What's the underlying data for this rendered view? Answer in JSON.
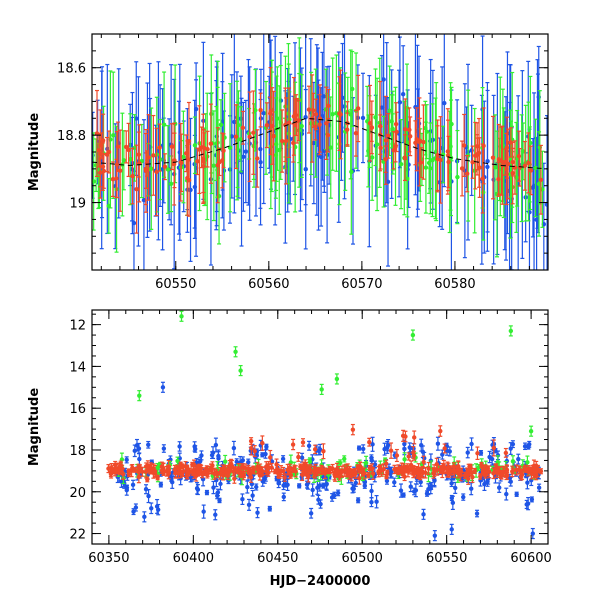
{
  "chart_data": [
    {
      "type": "scatter",
      "panel": "top",
      "xlabel": "",
      "ylabel": "Magnitude",
      "xlim": [
        60541,
        60590
      ],
      "ylim": [
        19.2,
        18.5
      ],
      "y_inverted": true,
      "xticks": [
        60550,
        60560,
        60570,
        60580
      ],
      "yticks": [
        18.6,
        18.8,
        19
      ],
      "ytick_labels": [
        "18.6",
        "18.8",
        "19"
      ],
      "error_bars": true,
      "series_colors": {
        "blue": "#1f55e6",
        "green": "#33ee33",
        "red": "#f04a2a"
      },
      "model_curve": {
        "style": "dashed",
        "color": "#000000",
        "x": [
          60541,
          60545,
          60550,
          60555,
          60560,
          60564,
          60568,
          60572,
          60576,
          60580,
          60585,
          60590
        ],
        "y": [
          18.88,
          18.89,
          18.88,
          18.84,
          18.79,
          18.75,
          18.76,
          18.8,
          18.84,
          18.87,
          18.89,
          18.9
        ]
      }
    },
    {
      "type": "scatter",
      "panel": "bottom",
      "xlabel": "HJD−2400000",
      "ylabel": "Magnitude",
      "xlim": [
        60340,
        60610
      ],
      "ylim": [
        22.5,
        11.3
      ],
      "y_inverted": true,
      "xticks": [
        60350,
        60400,
        60450,
        60500,
        60550,
        60600
      ],
      "yticks": [
        12,
        14,
        16,
        18,
        20,
        22
      ],
      "error_bars": true,
      "series_colors": {
        "blue": "#1f55e6",
        "green": "#33ee33",
        "red": "#f04a2a"
      },
      "outliers": {
        "green": [
          [
            60393,
            11.6
          ],
          [
            60425,
            13.3
          ],
          [
            60428,
            14.2
          ],
          [
            60368,
            15.4
          ],
          [
            60476,
            15.1
          ],
          [
            60485,
            14.6
          ],
          [
            60530,
            12.5
          ],
          [
            60588,
            12.3
          ],
          [
            60600,
            17.1
          ]
        ],
        "blue": [
          [
            60382,
            15.0
          ],
          [
            60371,
            21.2
          ],
          [
            60413,
            21.1
          ],
          [
            60438,
            21.0
          ],
          [
            60543,
            22.1
          ],
          [
            60553,
            21.8
          ],
          [
            60601,
            22.0
          ]
        ]
      }
    }
  ]
}
